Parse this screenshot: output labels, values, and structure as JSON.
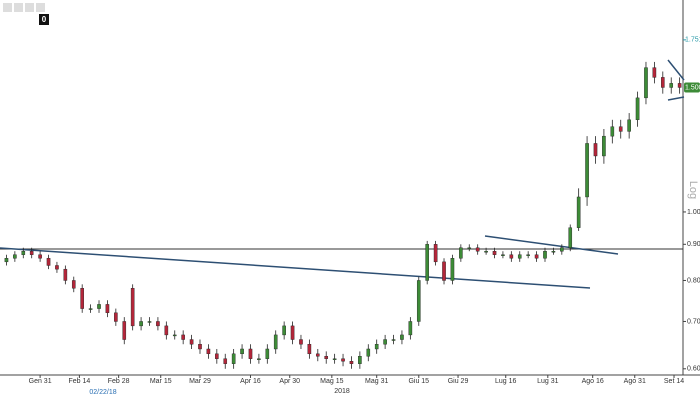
{
  "toolbar_badge": "0",
  "chart_data": {
    "type": "candlestick",
    "log_scale": true,
    "up_color": "#3d8b37",
    "down_color": "#b3263a",
    "axis_note": "Log",
    "year_label": "2018",
    "cursor_date": "02/22/18",
    "high_marker": 1.7514,
    "last_price": {
      "value": 1.5,
      "label": "1.500"
    },
    "xlim": [
      15.7,
      259.2
    ],
    "ylim": [
      0.588,
      1.943
    ],
    "yticks": [
      {
        "value": 0.6,
        "label": "0.60"
      },
      {
        "value": 0.7,
        "label": "0.70"
      },
      {
        "value": 0.8,
        "label": "0.80"
      },
      {
        "value": 0.9,
        "label": "0.90"
      },
      {
        "value": 1,
        "label": "1.00"
      }
    ],
    "xticks": [
      {
        "value": 30,
        "label": "Gen 31"
      },
      {
        "value": 44,
        "label": "Feb 14"
      },
      {
        "value": 58,
        "label": "Feb 28"
      },
      {
        "value": 73,
        "label": "Mar 15"
      },
      {
        "value": 87,
        "label": "Mar 29"
      },
      {
        "value": 105,
        "label": "Apr 16"
      },
      {
        "value": 119,
        "label": "Apr 30"
      },
      {
        "value": 134,
        "label": "Mag 15"
      },
      {
        "value": 150,
        "label": "Mag 31"
      },
      {
        "value": 165,
        "label": "Giu 15"
      },
      {
        "value": 179,
        "label": "Giu 29"
      },
      {
        "value": 196,
        "label": "Lug 16"
      },
      {
        "value": 211,
        "label": "Lug 31"
      },
      {
        "value": 227,
        "label": "Ago 16"
      },
      {
        "value": 242,
        "label": "Ago 31"
      },
      {
        "value": 256,
        "label": "Set 14"
      }
    ],
    "x": [
      18,
      21,
      24,
      27,
      30,
      33,
      36,
      39,
      42,
      45,
      48,
      51,
      54,
      57,
      60,
      63,
      66,
      69,
      72,
      75,
      78,
      81,
      84,
      87,
      90,
      93,
      96,
      99,
      102,
      105,
      108,
      111,
      114,
      117,
      120,
      123,
      126,
      129,
      132,
      135,
      138,
      141,
      144,
      147,
      150,
      153,
      156,
      159,
      162,
      165,
      168,
      171,
      174,
      177,
      180,
      183,
      186,
      189,
      192,
      195,
      198,
      201,
      204,
      207,
      210,
      213,
      216,
      219,
      222,
      225,
      228,
      231,
      234,
      237,
      240,
      243,
      246,
      249,
      252,
      255,
      258
    ],
    "open": [
      0.85,
      0.86,
      0.87,
      0.88,
      0.87,
      0.86,
      0.84,
      0.83,
      0.8,
      0.78,
      0.73,
      0.73,
      0.74,
      0.72,
      0.7,
      0.78,
      0.69,
      0.7,
      0.7,
      0.69,
      0.67,
      0.67,
      0.66,
      0.65,
      0.64,
      0.63,
      0.62,
      0.61,
      0.63,
      0.64,
      0.62,
      0.62,
      0.64,
      0.67,
      0.69,
      0.66,
      0.65,
      0.63,
      0.625,
      0.62,
      0.62,
      0.615,
      0.61,
      0.625,
      0.64,
      0.65,
      0.66,
      0.66,
      0.67,
      0.7,
      0.8,
      0.9,
      0.85,
      0.8,
      0.86,
      0.89,
      0.89,
      0.88,
      0.88,
      0.87,
      0.87,
      0.86,
      0.87,
      0.87,
      0.86,
      0.88,
      0.88,
      0.89,
      0.95,
      1.05,
      1.25,
      1.2,
      1.28,
      1.32,
      1.3,
      1.35,
      1.45,
      1.6,
      1.55,
      1.5,
      1.52
    ],
    "high": [
      0.87,
      0.88,
      0.89,
      0.89,
      0.88,
      0.87,
      0.85,
      0.84,
      0.81,
      0.79,
      0.74,
      0.75,
      0.75,
      0.73,
      0.71,
      0.79,
      0.71,
      0.71,
      0.71,
      0.7,
      0.68,
      0.68,
      0.67,
      0.66,
      0.65,
      0.64,
      0.63,
      0.64,
      0.65,
      0.65,
      0.63,
      0.65,
      0.68,
      0.7,
      0.7,
      0.67,
      0.66,
      0.64,
      0.635,
      0.63,
      0.63,
      0.625,
      0.635,
      0.65,
      0.66,
      0.67,
      0.67,
      0.68,
      0.71,
      0.81,
      0.91,
      0.91,
      0.86,
      0.87,
      0.9,
      0.9,
      0.9,
      0.89,
      0.89,
      0.88,
      0.88,
      0.88,
      0.88,
      0.88,
      0.89,
      0.89,
      0.9,
      0.96,
      1.08,
      1.28,
      1.28,
      1.31,
      1.35,
      1.35,
      1.38,
      1.48,
      1.63,
      1.63,
      1.58,
      1.55,
      1.55
    ],
    "low": [
      0.84,
      0.85,
      0.86,
      0.86,
      0.85,
      0.83,
      0.82,
      0.79,
      0.77,
      0.72,
      0.72,
      0.72,
      0.71,
      0.69,
      0.65,
      0.68,
      0.68,
      0.69,
      0.68,
      0.66,
      0.66,
      0.65,
      0.64,
      0.63,
      0.62,
      0.61,
      0.6,
      0.6,
      0.62,
      0.61,
      0.61,
      0.61,
      0.63,
      0.66,
      0.65,
      0.64,
      0.62,
      0.615,
      0.61,
      0.61,
      0.605,
      0.6,
      0.6,
      0.615,
      0.63,
      0.64,
      0.65,
      0.65,
      0.66,
      0.69,
      0.79,
      0.84,
      0.79,
      0.79,
      0.85,
      0.88,
      0.87,
      0.87,
      0.86,
      0.86,
      0.85,
      0.85,
      0.86,
      0.85,
      0.85,
      0.87,
      0.87,
      0.88,
      0.94,
      1.02,
      1.17,
      1.17,
      1.25,
      1.27,
      1.27,
      1.32,
      1.42,
      1.52,
      1.47,
      1.47,
      1.47
    ],
    "close": [
      0.86,
      0.87,
      0.88,
      0.87,
      0.86,
      0.84,
      0.83,
      0.8,
      0.78,
      0.73,
      0.73,
      0.74,
      0.72,
      0.7,
      0.66,
      0.69,
      0.7,
      0.7,
      0.69,
      0.67,
      0.67,
      0.66,
      0.65,
      0.64,
      0.63,
      0.62,
      0.61,
      0.63,
      0.64,
      0.62,
      0.62,
      0.64,
      0.67,
      0.69,
      0.66,
      0.65,
      0.63,
      0.625,
      0.62,
      0.62,
      0.615,
      0.61,
      0.625,
      0.64,
      0.65,
      0.66,
      0.66,
      0.67,
      0.7,
      0.8,
      0.9,
      0.85,
      0.8,
      0.86,
      0.89,
      0.89,
      0.88,
      0.88,
      0.87,
      0.87,
      0.86,
      0.87,
      0.87,
      0.86,
      0.88,
      0.88,
      0.89,
      0.95,
      1.05,
      1.25,
      1.2,
      1.28,
      1.32,
      1.3,
      1.35,
      1.45,
      1.6,
      1.55,
      1.5,
      1.52,
      1.5
    ]
  }
}
